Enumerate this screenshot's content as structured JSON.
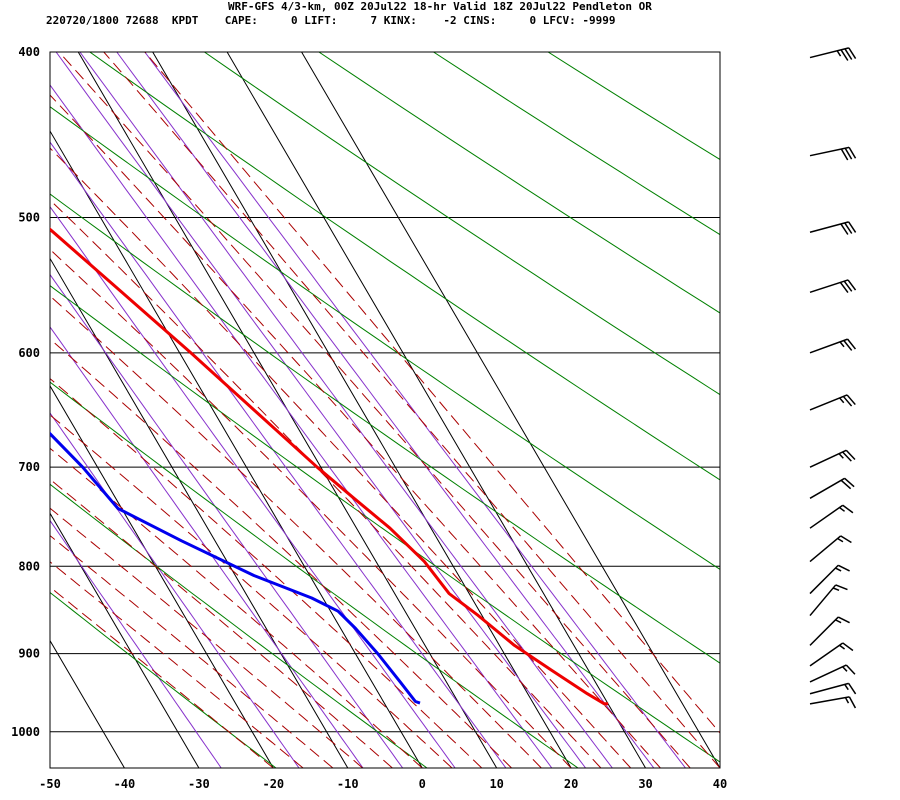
{
  "header": {
    "title": "WRF-GFS 4/3-km, 00Z 20Jul22 18-hr Valid 18Z 20Jul22 Pendleton OR",
    "info": "220720/1800 72688  KPDT    CAPE:     0 LIFT:     7 KINX:    -2 CINS:     0 LFCV: -9999"
  },
  "chart_data": {
    "type": "line",
    "subtype": "skew-T log-P sounding",
    "xlabel": "",
    "ylabel": "",
    "x_ticks": [
      -50,
      -40,
      -30,
      -20,
      -10,
      0,
      10,
      20,
      30,
      40
    ],
    "y_ticks": [
      400,
      500,
      600,
      700,
      800,
      900,
      1000
    ],
    "xlim": [
      -50,
      40
    ],
    "ylim": [
      1050,
      400
    ],
    "y_scale": "log",
    "grid": true,
    "series": [
      {
        "role": "temperature",
        "color": "#ee0000",
        "points": [
          [
            -20.5,
            403
          ],
          [
            -13.5,
            460
          ],
          [
            -7.5,
            510
          ],
          [
            -3,
            553
          ],
          [
            1.5,
            600
          ],
          [
            5.5,
            648
          ],
          [
            9.5,
            700
          ],
          [
            12,
            730
          ],
          [
            14.5,
            760
          ],
          [
            16.5,
            795
          ],
          [
            17.3,
            830
          ],
          [
            19.5,
            855
          ],
          [
            22,
            890
          ],
          [
            25,
            920
          ],
          [
            28,
            950
          ],
          [
            29.5,
            963
          ],
          [
            30,
            963
          ]
        ]
      },
      {
        "role": "dewpoint",
        "color": "#0000ee",
        "points": [
          [
            -40.5,
            403
          ],
          [
            -39.5,
            460
          ],
          [
            -38,
            515
          ],
          [
            -34.5,
            553
          ],
          [
            -30.5,
            590
          ],
          [
            -26.5,
            628
          ],
          [
            -24,
            665
          ],
          [
            -22,
            700
          ],
          [
            -20.5,
            740
          ],
          [
            -14.5,
            773
          ],
          [
            -7.5,
            810
          ],
          [
            -1.5,
            835
          ],
          [
            1,
            850
          ],
          [
            2,
            870
          ],
          [
            3,
            900
          ],
          [
            3.8,
            935
          ],
          [
            4.3,
            960
          ],
          [
            4.8,
            962
          ]
        ]
      }
    ],
    "background_lines": {
      "isotherm_color": "#000000",
      "dry_adiabat_color": "#008000",
      "moist_adiabat_color": "#aa0000",
      "mixing_ratio_color": "#8833cc"
    },
    "wind_barbs": [
      {
        "p": 403,
        "ws": 35,
        "wd": 256
      },
      {
        "p": 460,
        "ws": 30,
        "wd": 258
      },
      {
        "p": 510,
        "ws": 30,
        "wd": 255
      },
      {
        "p": 553,
        "ws": 30,
        "wd": 252
      },
      {
        "p": 600,
        "ws": 25,
        "wd": 250
      },
      {
        "p": 648,
        "ws": 25,
        "wd": 248
      },
      {
        "p": 700,
        "ws": 25,
        "wd": 245
      },
      {
        "p": 730,
        "ws": 20,
        "wd": 240
      },
      {
        "p": 760,
        "ws": 15,
        "wd": 235
      },
      {
        "p": 795,
        "ws": 15,
        "wd": 230
      },
      {
        "p": 830,
        "ws": 15,
        "wd": 225
      },
      {
        "p": 855,
        "ws": 15,
        "wd": 220
      },
      {
        "p": 890,
        "ws": 15,
        "wd": 225
      },
      {
        "p": 915,
        "ws": 15,
        "wd": 235
      },
      {
        "p": 935,
        "ws": 15,
        "wd": 245
      },
      {
        "p": 950,
        "ws": 15,
        "wd": 255
      },
      {
        "p": 963,
        "ws": 15,
        "wd": 260
      }
    ]
  }
}
